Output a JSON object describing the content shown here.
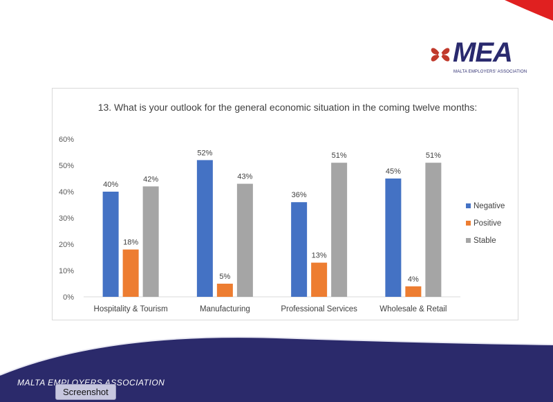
{
  "slide": {
    "logo_text": "MEA",
    "logo_subtext": "MALTA EMPLOYERS' ASSOCIATION",
    "footer_text": "MALTA EMPLOYERS ASSOCIATION",
    "tooltip": "Screenshot",
    "colors": {
      "navy": "#2b2a6b",
      "red": "#e02020",
      "brand_logo": "#c0392b"
    }
  },
  "chart_data": {
    "type": "bar",
    "title": "13. What is your outlook for the general economic situation in the coming twelve months:",
    "categories": [
      "Hospitality & Tourism",
      "Manufacturing",
      "Professional Services",
      "Wholesale & Retail"
    ],
    "series": [
      {
        "name": "Negative",
        "values": [
          40,
          52,
          36,
          45
        ],
        "labels": [
          "40%",
          "52%",
          "36%",
          "45%"
        ],
        "color": "#4472c4"
      },
      {
        "name": "Positive",
        "values": [
          18,
          5,
          13,
          4
        ],
        "labels": [
          "18%",
          "5%",
          "13%",
          "4%"
        ],
        "color": "#ed7d31"
      },
      {
        "name": "Stable",
        "values": [
          42,
          43,
          51,
          51
        ],
        "labels": [
          "42%",
          "43%",
          "51%",
          "51%"
        ],
        "color": "#a5a5a5"
      }
    ],
    "ylim": [
      0,
      60
    ],
    "yticks": [
      "0%",
      "10%",
      "20%",
      "30%",
      "40%",
      "50%",
      "60%"
    ],
    "xlabel": "",
    "ylabel": "",
    "legend": "right",
    "grid": false
  }
}
